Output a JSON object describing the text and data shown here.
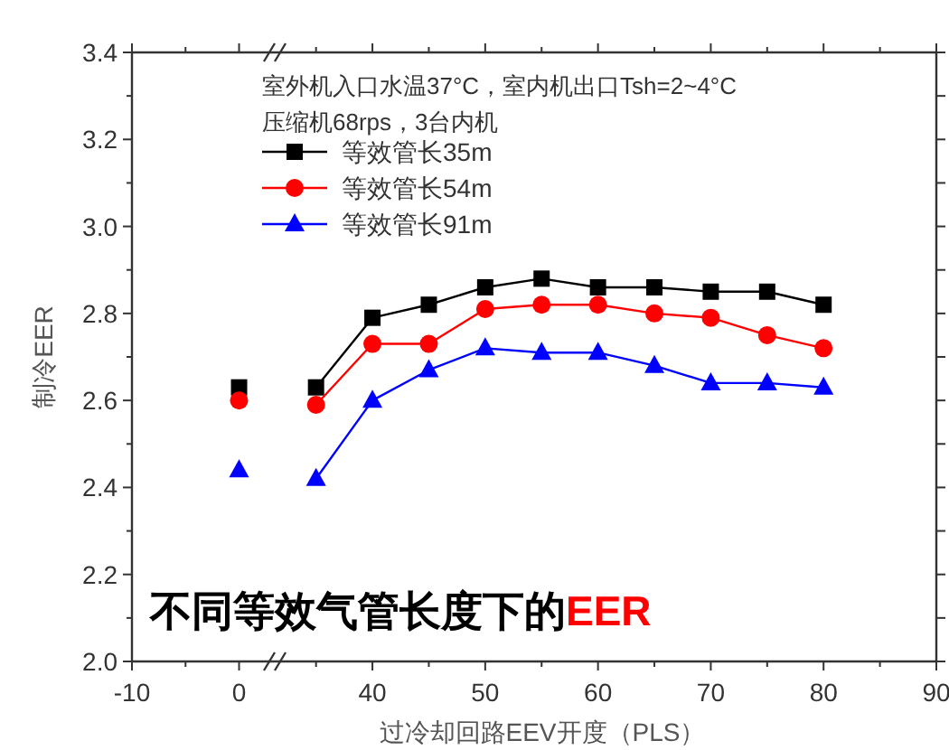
{
  "chart_data": [
    {
      "type": "line",
      "xlim": [
        -10,
        3.5
      ],
      "xticks": [
        -10,
        {
          "value": -5,
          "label": null
        },
        0
      ],
      "ylim": [
        2.0,
        3.4
      ],
      "yticks": [
        {
          "value": 2.0,
          "label": "2.0"
        },
        {
          "value": 2.1,
          "label": null
        },
        2.2,
        {
          "value": 2.3,
          "label": null
        },
        2.4,
        {
          "value": 2.5,
          "label": null
        },
        2.6,
        {
          "value": 2.7,
          "label": null
        },
        2.8,
        {
          "value": 2.9,
          "label": null
        },
        {
          "value": 3.0,
          "label": "3.0"
        },
        {
          "value": 3.1,
          "label": null
        },
        3.2,
        {
          "value": 3.3,
          "label": null
        },
        3.4
      ],
      "ylabel": "制冷EER",
      "series": [
        {
          "color": "#000000",
          "marker": "square",
          "x": [
            0
          ],
          "values": [
            2.63
          ]
        },
        {
          "color": "#ff0000",
          "marker": "circle",
          "x": [
            0
          ],
          "values": [
            2.6
          ]
        },
        {
          "color": "#0000ff",
          "marker": "triangle",
          "x": [
            0
          ],
          "values": [
            2.44
          ]
        }
      ]
    },
    {
      "type": "line",
      "xlim": [
        31.5,
        90
      ],
      "xticks": [
        {
          "value": 35,
          "label": null
        },
        40,
        {
          "value": 45,
          "label": null
        },
        50,
        {
          "value": 55,
          "label": null
        },
        60,
        {
          "value": 65,
          "label": null
        },
        70,
        {
          "value": 75,
          "label": null
        },
        80,
        {
          "value": 85,
          "label": null
        },
        90
      ],
      "ylim": [
        2.0,
        3.4
      ],
      "yticks": [
        2.0,
        2.1,
        2.2,
        2.3,
        2.4,
        2.5,
        2.6,
        2.7,
        2.8,
        2.9,
        3.0,
        3.1,
        3.2,
        3.3,
        3.4
      ],
      "tick_labels": "x",
      "xlabel": "过冷却回路EEV开度（PLS）",
      "line_style": "solid",
      "legend": "top left",
      "annotations": [
        "室外机入口水温37°C，室内机出口Tsh=2~4°C",
        "压缩机68rps，3台内机",
        "不同等效气管长度下的",
        "EER"
      ],
      "series": [
        {
          "name": "等效管长35m",
          "color": "#000000",
          "marker": "square",
          "x": [
            35,
            40,
            45,
            50,
            55,
            60,
            65,
            70,
            75,
            80
          ],
          "values": [
            2.63,
            2.79,
            2.82,
            2.86,
            2.88,
            2.86,
            2.86,
            2.85,
            2.85,
            2.82
          ]
        },
        {
          "name": "等效管长54m",
          "color": "#ff0000",
          "marker": "circle",
          "x": [
            35,
            40,
            45,
            50,
            55,
            60,
            65,
            70,
            75,
            80
          ],
          "values": [
            2.59,
            2.73,
            2.73,
            2.81,
            2.82,
            2.82,
            2.8,
            2.79,
            2.75,
            2.72
          ]
        },
        {
          "name": "等效管长91m",
          "color": "#0000ff",
          "marker": "triangle",
          "x": [
            35,
            40,
            45,
            50,
            55,
            60,
            65,
            70,
            75,
            80
          ],
          "values": [
            2.42,
            2.6,
            2.67,
            2.72,
            2.71,
            2.71,
            2.68,
            2.64,
            2.64,
            2.63
          ]
        }
      ]
    }
  ]
}
